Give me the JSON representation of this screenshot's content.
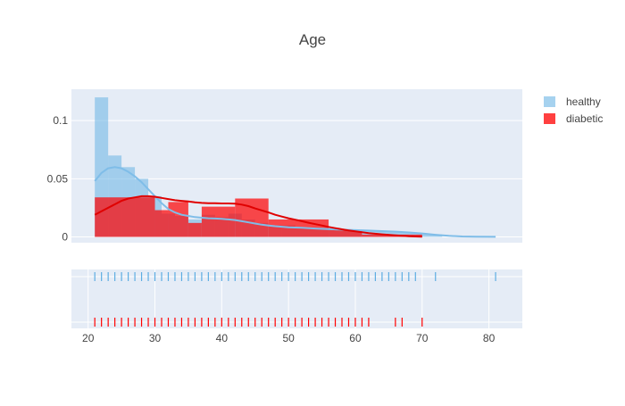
{
  "chart_data": {
    "type": "histogram",
    "title": "Age",
    "xlim": [
      17.5,
      85
    ],
    "ylim": [
      -0.005,
      0.127
    ],
    "x_ticks": [
      20,
      30,
      40,
      50,
      60,
      70,
      80
    ],
    "x_tick_labels": [
      "20",
      "30",
      "40",
      "50",
      "60",
      "70",
      "80"
    ],
    "y_ticks": [
      0,
      0.05,
      0.1
    ],
    "y_tick_labels": [
      "0",
      "0.05",
      "0.1"
    ],
    "grid": true,
    "legend_position": "top-right",
    "series": [
      {
        "name": "healthy",
        "color": "#5dade2",
        "kde_color": "#7fbde8",
        "bins": [
          {
            "x0": 21,
            "x1": 23,
            "value": 0.12
          },
          {
            "x0": 23,
            "x1": 25,
            "value": 0.07
          },
          {
            "x0": 25,
            "x1": 27,
            "value": 0.06
          },
          {
            "x0": 27,
            "x1": 29,
            "value": 0.05
          },
          {
            "x0": 29,
            "x1": 31,
            "value": 0.035
          },
          {
            "x0": 31,
            "x1": 33,
            "value": 0.02
          },
          {
            "x0": 33,
            "x1": 35,
            "value": 0.018
          },
          {
            "x0": 35,
            "x1": 37,
            "value": 0.015
          },
          {
            "x0": 37,
            "x1": 39,
            "value": 0.019
          },
          {
            "x0": 39,
            "x1": 41,
            "value": 0.017
          },
          {
            "x0": 41,
            "x1": 43,
            "value": 0.02
          },
          {
            "x0": 43,
            "x1": 45,
            "value": 0.015
          },
          {
            "x0": 45,
            "x1": 47,
            "value": 0.012
          },
          {
            "x0": 47,
            "x1": 49,
            "value": 0.01
          },
          {
            "x0": 49,
            "x1": 51,
            "value": 0.01
          },
          {
            "x0": 51,
            "x1": 53,
            "value": 0.008
          },
          {
            "x0": 53,
            "x1": 55,
            "value": 0.007
          },
          {
            "x0": 55,
            "x1": 57,
            "value": 0.007
          },
          {
            "x0": 57,
            "x1": 59,
            "value": 0.006
          },
          {
            "x0": 59,
            "x1": 61,
            "value": 0.006
          },
          {
            "x0": 61,
            "x1": 63,
            "value": 0.005
          },
          {
            "x0": 63,
            "x1": 65,
            "value": 0.005
          },
          {
            "x0": 65,
            "x1": 67,
            "value": 0.005
          },
          {
            "x0": 67,
            "x1": 69,
            "value": 0.004
          },
          {
            "x0": 69,
            "x1": 71,
            "value": 0.003
          },
          {
            "x0": 71,
            "x1": 73,
            "value": 0.002
          }
        ],
        "kde": [
          [
            21,
            0.048
          ],
          [
            22,
            0.055
          ],
          [
            23,
            0.059
          ],
          [
            24,
            0.06
          ],
          [
            25,
            0.059
          ],
          [
            26,
            0.056
          ],
          [
            27,
            0.052
          ],
          [
            28,
            0.047
          ],
          [
            29,
            0.041
          ],
          [
            30,
            0.035
          ],
          [
            31,
            0.029
          ],
          [
            32,
            0.024
          ],
          [
            33,
            0.021
          ],
          [
            34,
            0.019
          ],
          [
            35,
            0.018
          ],
          [
            36,
            0.017
          ],
          [
            37,
            0.0165
          ],
          [
            38,
            0.016
          ],
          [
            39,
            0.0158
          ],
          [
            40,
            0.0155
          ],
          [
            41,
            0.015
          ],
          [
            42,
            0.0145
          ],
          [
            43,
            0.0135
          ],
          [
            44,
            0.0125
          ],
          [
            45,
            0.0115
          ],
          [
            46,
            0.0105
          ],
          [
            47,
            0.0098
          ],
          [
            48,
            0.0092
          ],
          [
            49,
            0.0087
          ],
          [
            50,
            0.0083
          ],
          [
            52,
            0.0078
          ],
          [
            54,
            0.0072
          ],
          [
            56,
            0.0067
          ],
          [
            58,
            0.0062
          ],
          [
            60,
            0.0058
          ],
          [
            62,
            0.0054
          ],
          [
            64,
            0.005
          ],
          [
            66,
            0.0045
          ],
          [
            68,
            0.0038
          ],
          [
            70,
            0.003
          ],
          [
            72,
            0.0018
          ],
          [
            74,
            0.0009
          ],
          [
            76,
            0.0004
          ],
          [
            78,
            0.0002
          ],
          [
            81,
            0.0001
          ]
        ],
        "rugs": [
          21,
          22,
          23,
          24,
          25,
          26,
          27,
          28,
          29,
          30,
          31,
          32,
          33,
          34,
          35,
          36,
          37,
          38,
          39,
          40,
          41,
          42,
          43,
          44,
          45,
          46,
          47,
          48,
          49,
          50,
          51,
          52,
          53,
          54,
          55,
          56,
          57,
          58,
          59,
          60,
          61,
          62,
          63,
          64,
          65,
          66,
          67,
          68,
          69,
          72,
          81
        ]
      },
      {
        "name": "diabetic",
        "color": "#ff0000",
        "kde_color": "#e00000",
        "bins": [
          {
            "x0": 21,
            "x1": 30,
            "value": 0.034
          },
          {
            "x0": 30,
            "x1": 32,
            "value": 0.023
          },
          {
            "x0": 32,
            "x1": 35,
            "value": 0.03
          },
          {
            "x0": 35,
            "x1": 37,
            "value": 0.012
          },
          {
            "x0": 37,
            "x1": 42,
            "value": 0.026
          },
          {
            "x0": 42,
            "x1": 47,
            "value": 0.033
          },
          {
            "x0": 47,
            "x1": 56,
            "value": 0.015
          },
          {
            "x0": 56,
            "x1": 61,
            "value": 0.006
          },
          {
            "x0": 61,
            "x1": 70,
            "value": 0.002
          }
        ],
        "kde": [
          [
            21,
            0.019
          ],
          [
            22,
            0.022
          ],
          [
            23,
            0.025
          ],
          [
            24,
            0.028
          ],
          [
            25,
            0.031
          ],
          [
            26,
            0.033
          ],
          [
            27,
            0.034
          ],
          [
            28,
            0.035
          ],
          [
            29,
            0.035
          ],
          [
            30,
            0.0345
          ],
          [
            31,
            0.0335
          ],
          [
            32,
            0.0325
          ],
          [
            33,
            0.0315
          ],
          [
            34,
            0.031
          ],
          [
            35,
            0.0305
          ],
          [
            36,
            0.0298
          ],
          [
            37,
            0.0292
          ],
          [
            38,
            0.029
          ],
          [
            39,
            0.029
          ],
          [
            40,
            0.0288
          ],
          [
            41,
            0.0288
          ],
          [
            42,
            0.0285
          ],
          [
            43,
            0.0278
          ],
          [
            44,
            0.0265
          ],
          [
            45,
            0.0245
          ],
          [
            46,
            0.0228
          ],
          [
            47,
            0.021
          ],
          [
            48,
            0.019
          ],
          [
            49,
            0.0175
          ],
          [
            50,
            0.016
          ],
          [
            51,
            0.0148
          ],
          [
            52,
            0.0135
          ],
          [
            53,
            0.0122
          ],
          [
            54,
            0.011
          ],
          [
            55,
            0.0098
          ],
          [
            56,
            0.0086
          ],
          [
            57,
            0.0075
          ],
          [
            58,
            0.0065
          ],
          [
            59,
            0.0056
          ],
          [
            60,
            0.0048
          ],
          [
            62,
            0.0033
          ],
          [
            64,
            0.0022
          ],
          [
            66,
            0.0013
          ],
          [
            68,
            0.0005
          ],
          [
            70,
            0.0002
          ]
        ],
        "rugs": [
          21,
          22,
          23,
          24,
          25,
          26,
          27,
          28,
          29,
          30,
          31,
          32,
          33,
          34,
          35,
          36,
          37,
          38,
          39,
          40,
          41,
          42,
          43,
          44,
          45,
          46,
          47,
          48,
          49,
          50,
          51,
          52,
          53,
          54,
          55,
          56,
          57,
          58,
          59,
          60,
          61,
          62,
          66,
          67,
          70
        ]
      }
    ]
  }
}
